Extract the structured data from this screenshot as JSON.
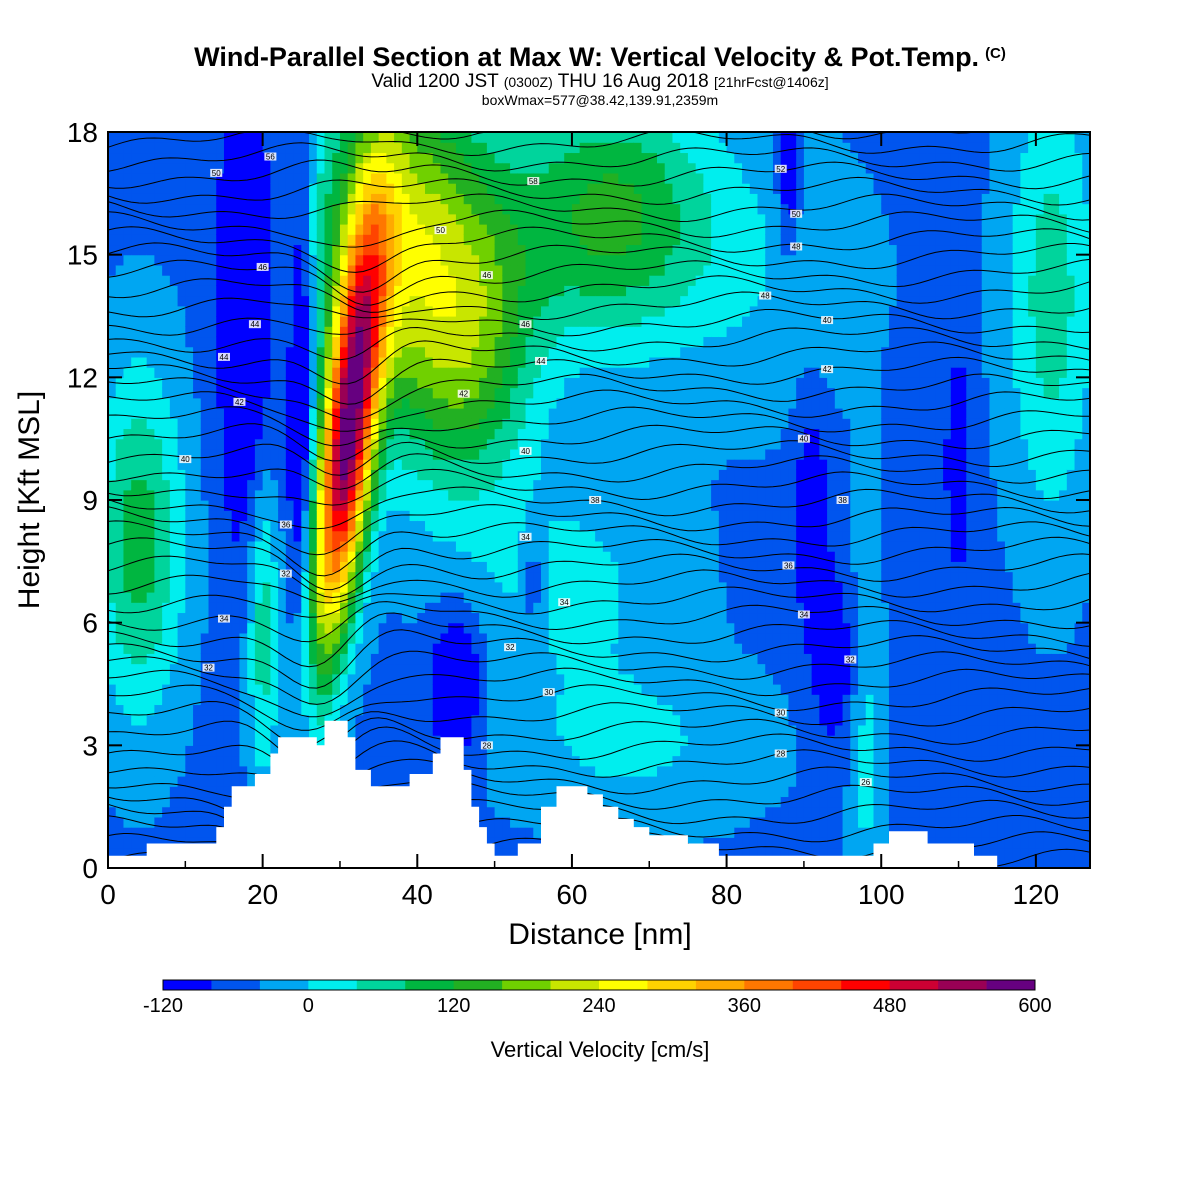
{
  "title": "Wind-Parallel Section at Max W: Vertical Velocity & Pot.Temp.",
  "title_mark": "(C)",
  "subtitle": {
    "valid": "Valid 1200 JST",
    "utc": "(0300Z)",
    "date": "THU 16 Aug 2018",
    "fcst": "[21hrFcst@1406z]"
  },
  "subtitle2": "boxWmax=577@38.42,139.91,2359m",
  "chart_data": {
    "type": "heatmap",
    "xlabel": "Distance [nm]",
    "ylabel": "Height [Kft MSL]",
    "xlim": [
      0,
      127
    ],
    "ylim": [
      0,
      18
    ],
    "x_ticks": [
      "0",
      "20",
      "40",
      "60",
      "80",
      "100",
      "120"
    ],
    "y_ticks": [
      "0",
      "3",
      "6",
      "9",
      "12",
      "15",
      "18"
    ],
    "colorbar": {
      "label": "Vertical Velocity [cm/s]",
      "tick_labels": [
        "-120",
        "0",
        "120",
        "240",
        "360",
        "480",
        "600"
      ],
      "levels": [
        -120,
        -80,
        -40,
        0,
        40,
        80,
        120,
        160,
        200,
        240,
        280,
        320,
        360,
        400,
        440,
        480,
        520,
        560,
        600
      ],
      "colors": [
        "#0000ff",
        "#0055ee",
        "#00a6f2",
        "#00eeee",
        "#00d49c",
        "#00b640",
        "#22b022",
        "#70d000",
        "#c8e600",
        "#ffff00",
        "#ffd200",
        "#ffaa00",
        "#ff7700",
        "#ff4400",
        "#ff0000",
        "#cc0033",
        "#990055",
        "#660080"
      ]
    },
    "background_value": -50,
    "max_w": 577,
    "features": [
      {
        "x": 31,
        "y": 10.5,
        "sx": 2.4,
        "sy": 3.6,
        "amp": 600,
        "tilt": 0.55
      },
      {
        "x": 38,
        "y": 15.5,
        "sx": 8.0,
        "sy": 3.0,
        "amp": 260,
        "tilt": 0
      },
      {
        "x": 65,
        "y": 16.0,
        "sx": 9.0,
        "sy": 2.2,
        "amp": 180,
        "tilt": 0
      },
      {
        "x": 47,
        "y": 12.5,
        "sx": 6.0,
        "sy": 2.5,
        "amp": 160,
        "tilt": 0.3
      },
      {
        "x": 4,
        "y": 8.0,
        "sx": 4.0,
        "sy": 3.0,
        "amp": 150,
        "tilt": 0
      },
      {
        "x": 20,
        "y": 6.0,
        "sx": 1.5,
        "sy": 2.8,
        "amp": 120,
        "tilt": 0
      },
      {
        "x": 60,
        "y": 7.0,
        "sx": 10.0,
        "sy": 2.0,
        "amp": 60,
        "tilt": 0
      },
      {
        "x": 68,
        "y": 3.0,
        "sx": 12.0,
        "sy": 1.4,
        "amp": 55,
        "tilt": 0
      },
      {
        "x": 85,
        "y": 14.5,
        "sx": 10.0,
        "sy": 2.5,
        "amp": 40,
        "tilt": 0
      },
      {
        "x": 122,
        "y": 14.0,
        "sx": 4.0,
        "sy": 4.0,
        "amp": 110,
        "tilt": 0
      },
      {
        "x": 98,
        "y": 3.0,
        "sx": 1.5,
        "sy": 4.0,
        "amp": 60,
        "tilt": 0
      },
      {
        "x": 18,
        "y": 14.0,
        "sx": 2.5,
        "sy": 4.5,
        "amp": -110,
        "tilt": 0
      },
      {
        "x": 25,
        "y": 12.0,
        "sx": 1.2,
        "sy": 5.0,
        "amp": -120,
        "tilt": 0
      },
      {
        "x": 45,
        "y": 4.5,
        "sx": 2.2,
        "sy": 1.2,
        "amp": -120,
        "tilt": 0
      },
      {
        "x": 91,
        "y": 8.5,
        "sx": 1.5,
        "sy": 2.0,
        "amp": -80,
        "tilt": 0
      },
      {
        "x": 94,
        "y": 5.0,
        "sx": 2.0,
        "sy": 1.5,
        "amp": -70,
        "tilt": 0
      },
      {
        "x": 110,
        "y": 10.0,
        "sx": 1.2,
        "sy": 2.0,
        "amp": -70,
        "tilt": 0
      },
      {
        "x": 88,
        "y": 17.0,
        "sx": 1.0,
        "sy": 1.5,
        "amp": -90,
        "tilt": 0
      },
      {
        "x": 55,
        "y": 7.0,
        "sx": 1.0,
        "sy": 1.0,
        "amp": -60,
        "tilt": 0
      }
    ],
    "terrain": [
      [
        0,
        0.3
      ],
      [
        5,
        0.3
      ],
      [
        5,
        0.6
      ],
      [
        14,
        0.6
      ],
      [
        14,
        1.0
      ],
      [
        15,
        1.0
      ],
      [
        15,
        1.5
      ],
      [
        16,
        1.5
      ],
      [
        16,
        2.0
      ],
      [
        19,
        2.0
      ],
      [
        19,
        2.3
      ],
      [
        21,
        2.3
      ],
      [
        21,
        2.8
      ],
      [
        22,
        2.8
      ],
      [
        22,
        3.2
      ],
      [
        27,
        3.2
      ],
      [
        27,
        3.0
      ],
      [
        28,
        3.0
      ],
      [
        28,
        3.6
      ],
      [
        31,
        3.6
      ],
      [
        31,
        3.2
      ],
      [
        32,
        3.2
      ],
      [
        32,
        2.4
      ],
      [
        34,
        2.4
      ],
      [
        34,
        2.0
      ],
      [
        39,
        2.0
      ],
      [
        39,
        2.3
      ],
      [
        42,
        2.3
      ],
      [
        42,
        2.8
      ],
      [
        43,
        2.8
      ],
      [
        43,
        3.2
      ],
      [
        46,
        3.2
      ],
      [
        46,
        2.4
      ],
      [
        47,
        2.4
      ],
      [
        47,
        1.5
      ],
      [
        48,
        1.5
      ],
      [
        48,
        1.0
      ],
      [
        49,
        1.0
      ],
      [
        49,
        0.6
      ],
      [
        50,
        0.6
      ],
      [
        50,
        0.3
      ],
      [
        53,
        0.3
      ],
      [
        53,
        0.6
      ],
      [
        56,
        0.6
      ],
      [
        56,
        1.5
      ],
      [
        58,
        1.5
      ],
      [
        58,
        2.0
      ],
      [
        62,
        2.0
      ],
      [
        62,
        1.8
      ],
      [
        64,
        1.8
      ],
      [
        64,
        1.5
      ],
      [
        66,
        1.5
      ],
      [
        66,
        1.2
      ],
      [
        68,
        1.2
      ],
      [
        68,
        1.0
      ],
      [
        70,
        1.0
      ],
      [
        70,
        0.8
      ],
      [
        75,
        0.8
      ],
      [
        75,
        0.6
      ],
      [
        79,
        0.6
      ],
      [
        79,
        0.3
      ],
      [
        99,
        0.3
      ],
      [
        99,
        0.6
      ],
      [
        101,
        0.6
      ],
      [
        101,
        0.9
      ],
      [
        106,
        0.9
      ],
      [
        106,
        0.6
      ],
      [
        112,
        0.6
      ],
      [
        112,
        0.3
      ],
      [
        115,
        0.3
      ],
      [
        115,
        0.0
      ],
      [
        127,
        0.0
      ]
    ],
    "theta_labels": [
      {
        "x": 21,
        "y": 17.4,
        "t": "56"
      },
      {
        "x": 14,
        "y": 17.0,
        "t": "50"
      },
      {
        "x": 55,
        "y": 16.8,
        "t": "58"
      },
      {
        "x": 87,
        "y": 17.1,
        "t": "52"
      },
      {
        "x": 89,
        "y": 16.0,
        "t": "50"
      },
      {
        "x": 43,
        "y": 15.6,
        "t": "50"
      },
      {
        "x": 89,
        "y": 15.2,
        "t": "48"
      },
      {
        "x": 20,
        "y": 14.7,
        "t": "46"
      },
      {
        "x": 49,
        "y": 14.5,
        "t": "46"
      },
      {
        "x": 85,
        "y": 14.0,
        "t": "48"
      },
      {
        "x": 19,
        "y": 13.3,
        "t": "44"
      },
      {
        "x": 54,
        "y": 13.3,
        "t": "46"
      },
      {
        "x": 93,
        "y": 13.4,
        "t": "40"
      },
      {
        "x": 15,
        "y": 12.5,
        "t": "44"
      },
      {
        "x": 56,
        "y": 12.4,
        "t": "44"
      },
      {
        "x": 93,
        "y": 12.2,
        "t": "42"
      },
      {
        "x": 17,
        "y": 11.4,
        "t": "42"
      },
      {
        "x": 46,
        "y": 11.6,
        "t": "42"
      },
      {
        "x": 90,
        "y": 10.5,
        "t": "40"
      },
      {
        "x": 10,
        "y": 10.0,
        "t": "40"
      },
      {
        "x": 54,
        "y": 10.2,
        "t": "40"
      },
      {
        "x": 63,
        "y": 9.0,
        "t": "38"
      },
      {
        "x": 95,
        "y": 9.0,
        "t": "38"
      },
      {
        "x": 23,
        "y": 8.4,
        "t": "36"
      },
      {
        "x": 54,
        "y": 8.1,
        "t": "34"
      },
      {
        "x": 88,
        "y": 7.4,
        "t": "36"
      },
      {
        "x": 23,
        "y": 7.2,
        "t": "32"
      },
      {
        "x": 59,
        "y": 6.5,
        "t": "34"
      },
      {
        "x": 90,
        "y": 6.2,
        "t": "34"
      },
      {
        "x": 15,
        "y": 6.1,
        "t": "34"
      },
      {
        "x": 52,
        "y": 5.4,
        "t": "32"
      },
      {
        "x": 96,
        "y": 5.1,
        "t": "32"
      },
      {
        "x": 13,
        "y": 4.9,
        "t": "32"
      },
      {
        "x": 57,
        "y": 4.3,
        "t": "30"
      },
      {
        "x": 87,
        "y": 3.8,
        "t": "30"
      },
      {
        "x": 49,
        "y": 3.0,
        "t": "28"
      },
      {
        "x": 87,
        "y": 2.8,
        "t": "28"
      },
      {
        "x": 98,
        "y": 2.1,
        "t": "26"
      }
    ]
  }
}
